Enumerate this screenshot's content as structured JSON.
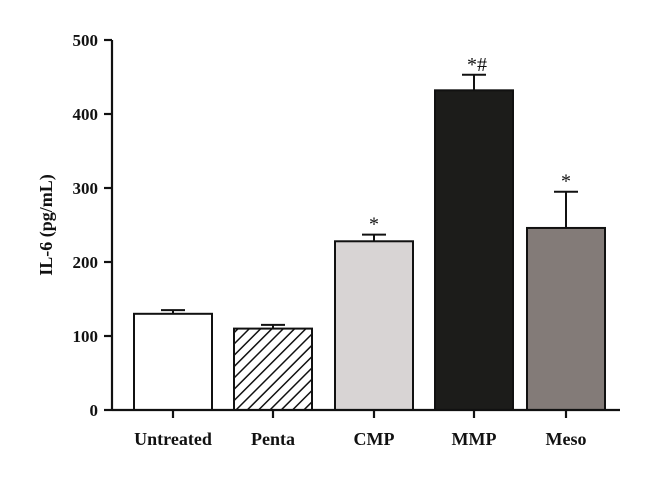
{
  "chart_data": {
    "type": "bar",
    "title": "",
    "xlabel": "",
    "ylabel": "IL-6 (pg/mL)",
    "ylim": [
      0,
      500
    ],
    "yticks": [
      0,
      100,
      200,
      300,
      400,
      500
    ],
    "grid": false,
    "categories": [
      "Untreated",
      "Penta",
      "CMP",
      "MMP",
      "Meso"
    ],
    "values": [
      130,
      110,
      228,
      432,
      246
    ],
    "errors": [
      5,
      5,
      9,
      21,
      49
    ],
    "annotations": [
      "",
      "",
      "*",
      "*#",
      "*"
    ],
    "fills": [
      "#ffffff",
      "hatch",
      "#d8d4d4",
      "#1c1c1a",
      "#837b78"
    ]
  }
}
